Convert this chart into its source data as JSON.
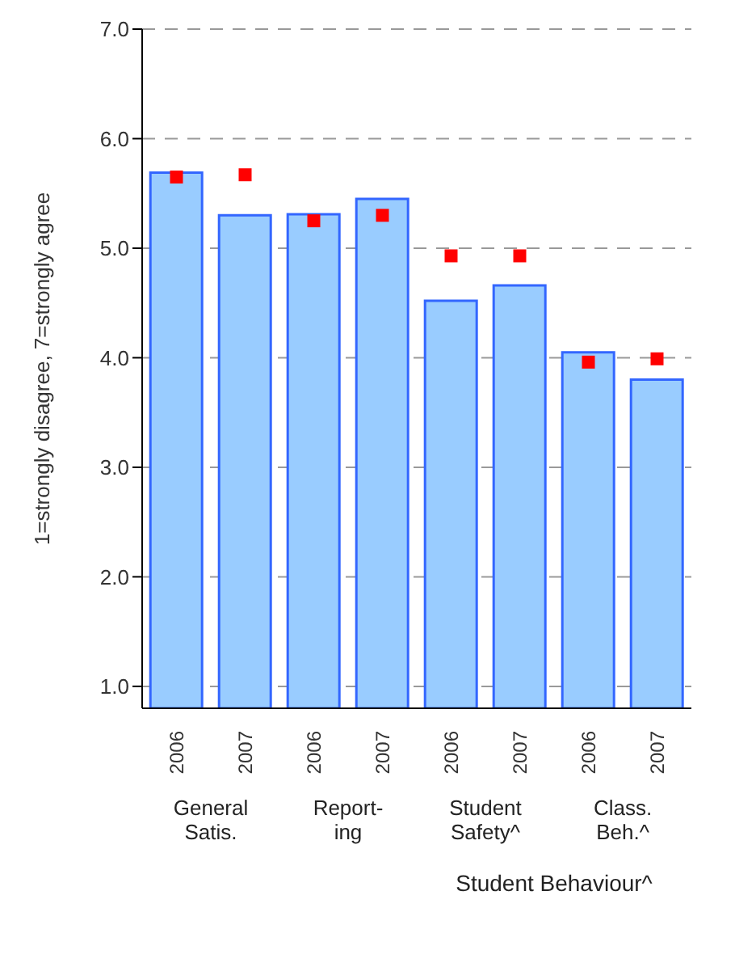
{
  "chart_data": {
    "type": "bar",
    "ylabel": "1=strongly disagree, 7=strongly agree",
    "categories": [
      "2006",
      "2007",
      "2006",
      "2007",
      "2006",
      "2007",
      "2006",
      "2007"
    ],
    "series": [
      {
        "color": "#99ccff",
        "values": [
          5.69,
          5.3,
          5.31,
          5.45,
          4.52,
          4.66,
          4.05,
          3.8
        ]
      },
      {
        "type": "scatter",
        "color": "#ff0000",
        "marker": "square",
        "values": [
          5.65,
          5.67,
          5.25,
          5.3,
          4.93,
          4.93,
          3.96,
          3.99
        ]
      }
    ],
    "ylim": [
      0.8,
      7.0
    ],
    "yticks": [
      {
        "value": 1,
        "label": "1.0"
      },
      {
        "value": 2,
        "label": "2.0"
      },
      {
        "value": 3,
        "label": "3.0"
      },
      {
        "value": 4,
        "label": "4.0"
      },
      {
        "value": 5,
        "label": "5.0"
      },
      {
        "value": 6,
        "label": "6.0"
      },
      {
        "value": 7,
        "label": "7.0"
      }
    ],
    "grid": "y",
    "annotations": [
      "General Satis.",
      "Report-ing",
      "Student Safety^",
      "Class. Beh.^",
      "Student Behaviour^"
    ]
  }
}
